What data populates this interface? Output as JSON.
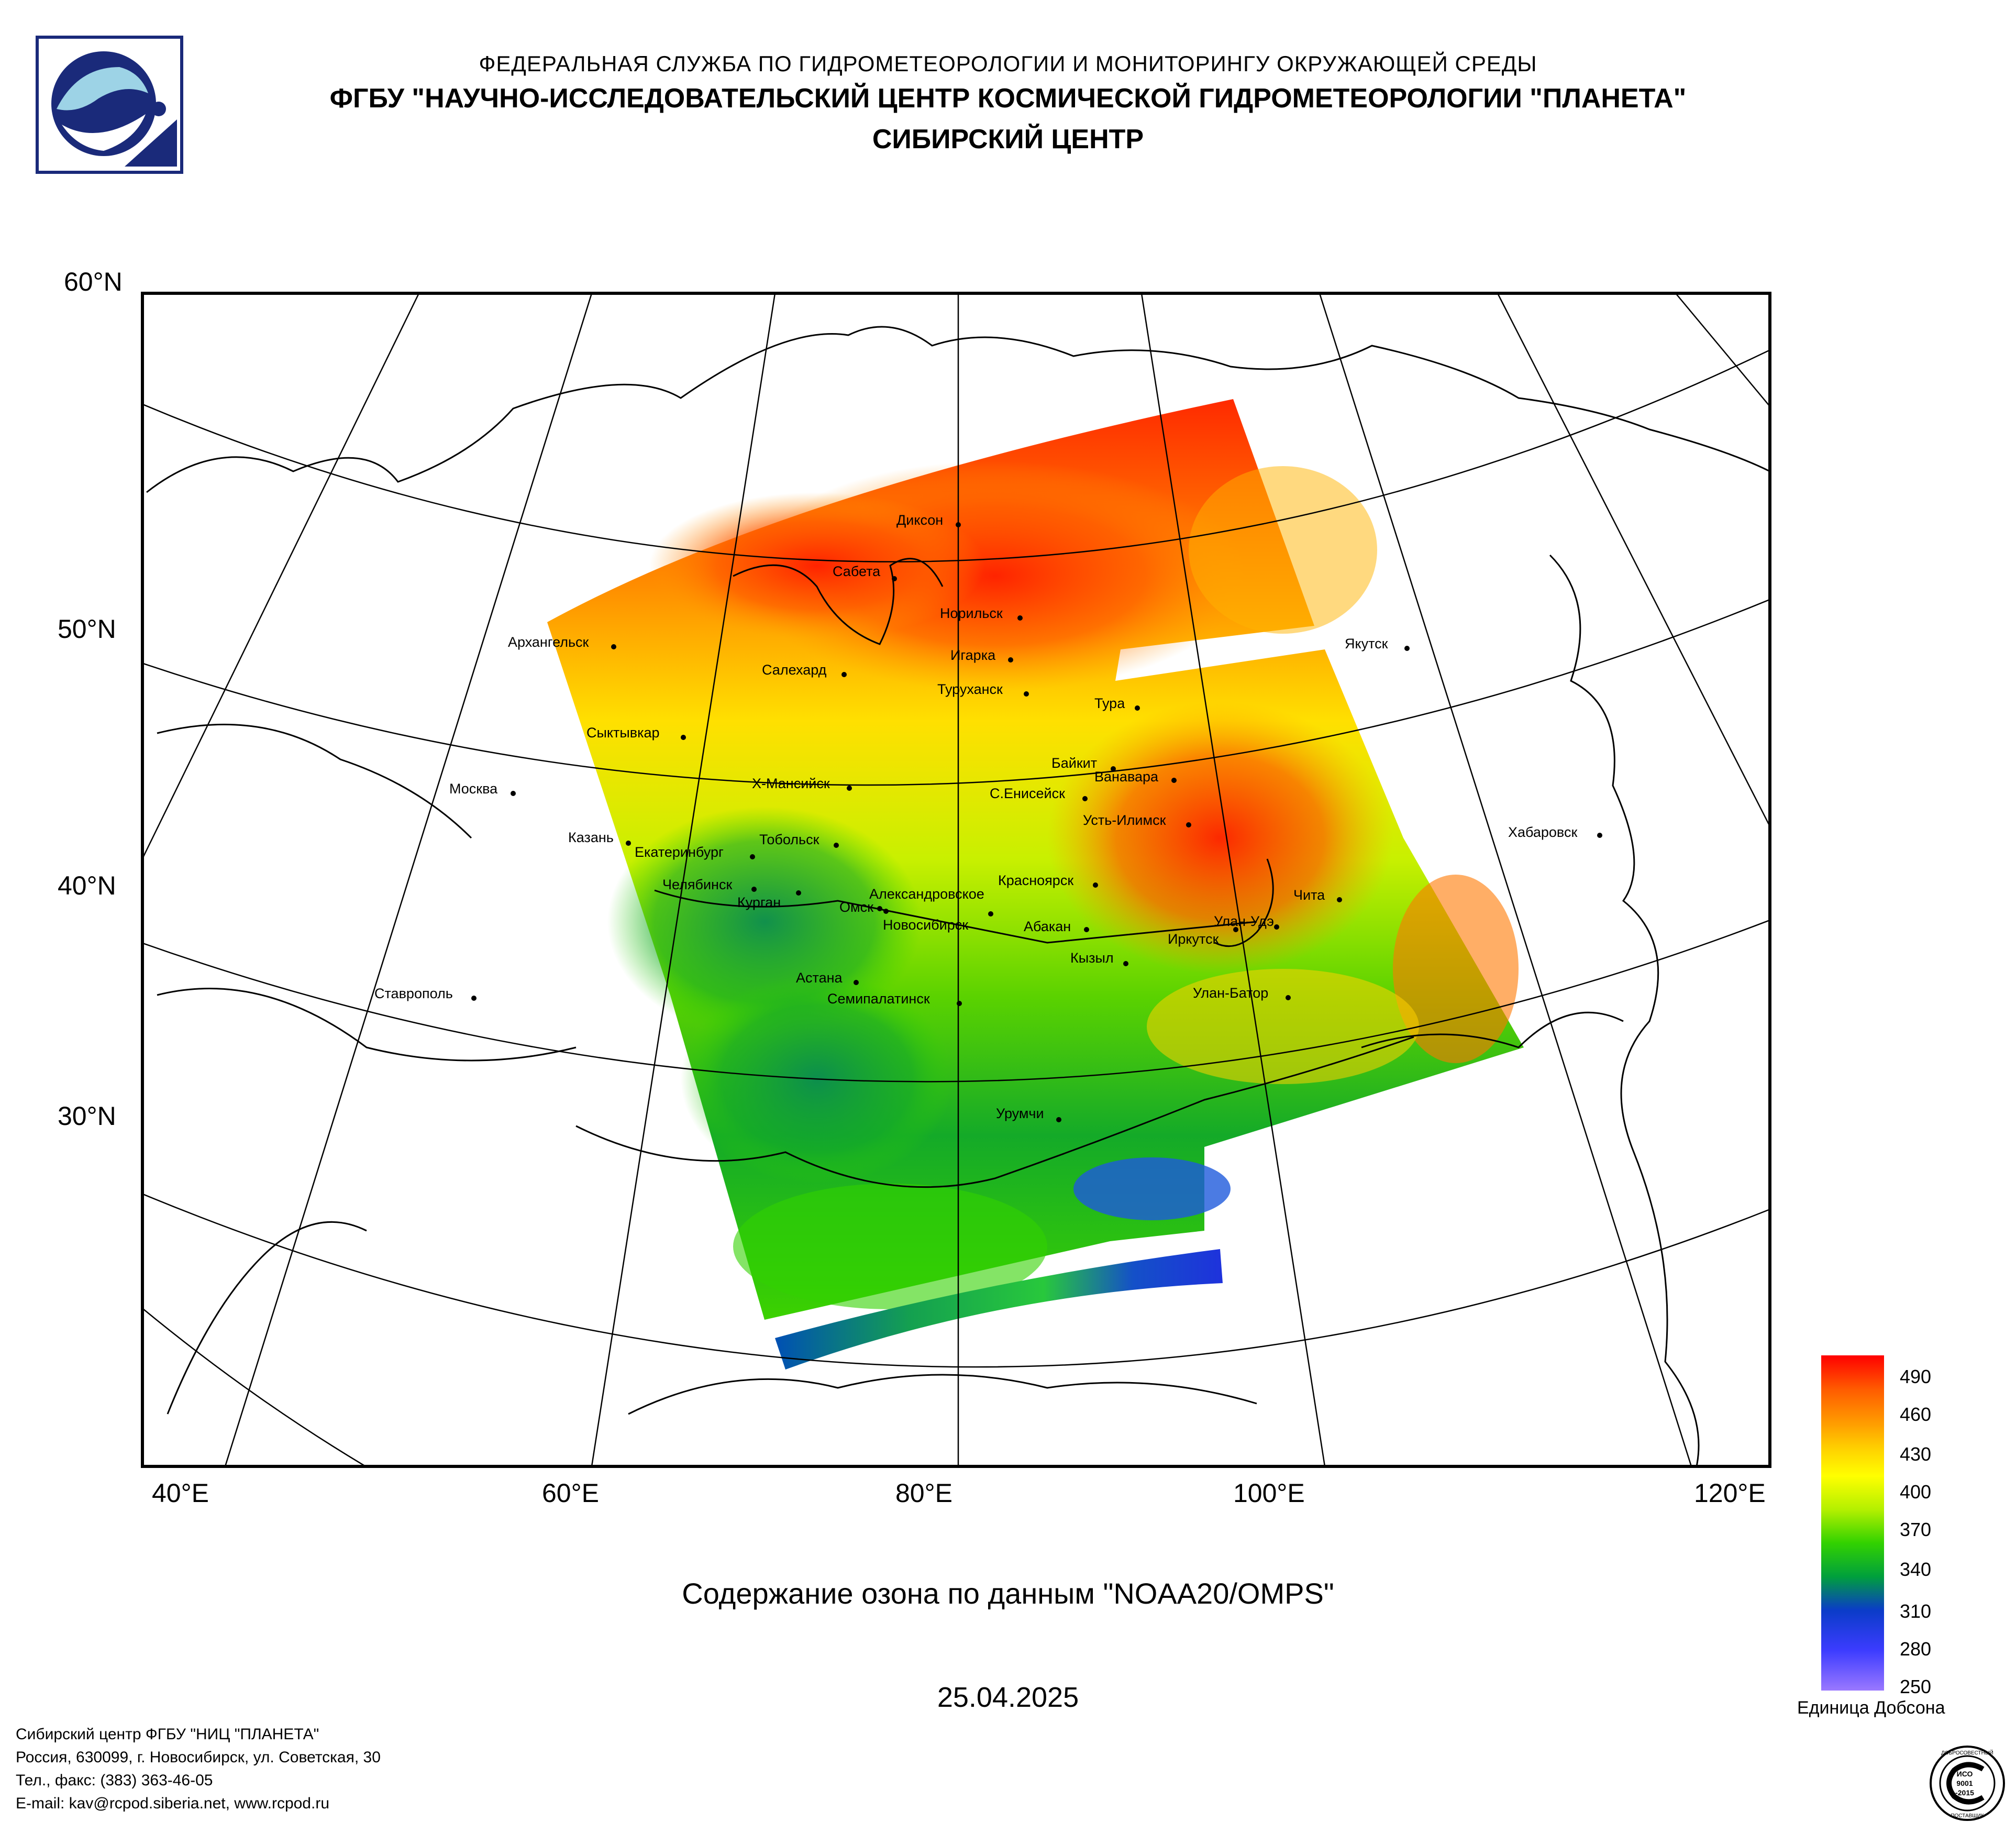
{
  "header": {
    "line1": "ФЕДЕРАЛЬНАЯ СЛУЖБА ПО ГИДРОМЕТЕОРОЛОГИИ И МОНИТОРИНГУ ОКРУЖАЮЩЕЙ СРЕДЫ",
    "line2": "ФГБУ \"НАУЧНО-ИССЛЕДОВАТЕЛЬСКИЙ ЦЕНТР КОСМИЧЕСКОЙ ГИДРОМЕТЕОРОЛОГИИ \"ПЛАНЕТА\"",
    "line3": "СИБИРСКИЙ ЦЕНТР"
  },
  "map": {
    "lat_labels": [
      "60°N",
      "50°N",
      "40°N",
      "30°N"
    ],
    "lon_labels": [
      "40°E",
      "60°E",
      "80°E",
      "100°E",
      "120°E"
    ],
    "cities": [
      "Диксон",
      "Сабета",
      "Норильск",
      "Архангельск",
      "Салехард",
      "Игарка",
      "Туруханск",
      "Якутск",
      "Тура",
      "Сыктывкар",
      "Байкит",
      "Ванавара",
      "Х-Мансийск",
      "С.Енисейск",
      "Москва",
      "Усть-Илимск",
      "Казань",
      "Тобольск",
      "Екатеринбург",
      "Хабаровск",
      "Челябинск",
      "Курган",
      "Александровское",
      "Омск",
      "Новосибирск",
      "Красноярск",
      "Чита",
      "Улан-Удэ",
      "Абакан",
      "Иркутск",
      "Кызыл",
      "Астана",
      "Ставрополь",
      "Семипалатинск",
      "Улан-Батор",
      "Урумчи"
    ]
  },
  "caption": "Содержание озона по данным \"NOAA20/OMPS\"",
  "date": "25.04.2025",
  "legend": {
    "ticks": [
      "490",
      "460",
      "430",
      "400",
      "370",
      "340",
      "310",
      "280",
      "250"
    ],
    "unit": "Единица Добсона",
    "colors": [
      "#ff0000",
      "#ff5a00",
      "#ff9a00",
      "#ffd200",
      "#ffff00",
      "#b4f000",
      "#32d200",
      "#00a03c",
      "#0a3cc8",
      "#3c3cff",
      "#9a78ff"
    ]
  },
  "footer": {
    "line1": "Сибирский центр ФГБУ \"НИЦ \"ПЛАНЕТА\"",
    "line2": "Россия, 630099, г. Новосибирск, ул. Советская, 30",
    "line3": "Тел., факс: (383) 363-46-05",
    "line4": "E-mail: kav@rcpod.siberia.net, www.rcpod.ru"
  },
  "iso_badge": {
    "top": "ДОБРОСОВЕСТНЫЙ",
    "l1": "ИСО",
    "l2": "9001",
    "l3": "-2015",
    "bottom": "ПОСТАВЩИК"
  }
}
